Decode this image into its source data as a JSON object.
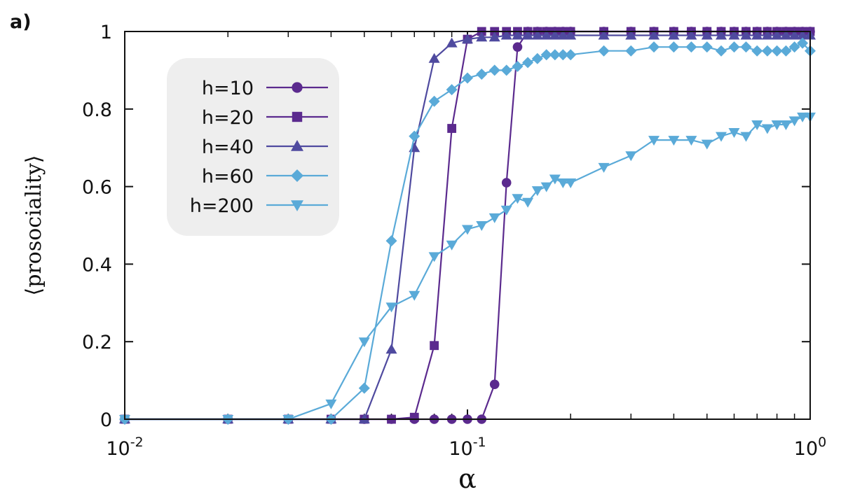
{
  "chart_data": {
    "type": "line",
    "panel_label": "a)",
    "xlabel": "α",
    "ylabel": "⟨prosociality⟩",
    "xscale": "log",
    "xlim": [
      0.01,
      1
    ],
    "ylim": [
      0,
      1
    ],
    "x_ticks": [
      {
        "value": 0.01,
        "base": "10",
        "exp": "-2"
      },
      {
        "value": 0.1,
        "base": "10",
        "exp": "-1"
      },
      {
        "value": 1,
        "base": "10",
        "exp": "0"
      }
    ],
    "y_ticks": [
      {
        "value": 0,
        "label": "0"
      },
      {
        "value": 0.2,
        "label": "0.2"
      },
      {
        "value": 0.4,
        "label": "0.4"
      },
      {
        "value": 0.6,
        "label": "0.6"
      },
      {
        "value": 0.8,
        "label": "0.8"
      },
      {
        "value": 1,
        "label": "1"
      }
    ],
    "legend_position": "top-left",
    "series": [
      {
        "name": "h=10",
        "color": "#5b2a8e",
        "marker": "circle",
        "x": [
          0.01,
          0.02,
          0.03,
          0.04,
          0.05,
          0.06,
          0.07,
          0.08,
          0.09,
          0.1,
          0.11,
          0.12,
          0.13,
          0.14,
          0.15,
          0.16,
          0.17,
          0.18,
          0.19,
          0.2,
          0.25,
          0.3,
          0.35,
          0.4,
          0.45,
          0.5,
          0.55,
          0.6,
          0.65,
          0.7,
          0.75,
          0.8,
          0.85,
          0.9,
          0.95,
          1.0
        ],
        "y": [
          0,
          0,
          0,
          0,
          0,
          0,
          0,
          0,
          0,
          0,
          0,
          0.09,
          0.61,
          0.96,
          1,
          1,
          1,
          1,
          1,
          1,
          1,
          1,
          1,
          1,
          1,
          1,
          1,
          1,
          1,
          1,
          1,
          1,
          1,
          1,
          1,
          1
        ]
      },
      {
        "name": "h=20",
        "color": "#5b2a8e",
        "marker": "square",
        "x": [
          0.01,
          0.02,
          0.03,
          0.04,
          0.05,
          0.06,
          0.07,
          0.08,
          0.09,
          0.1,
          0.11,
          0.12,
          0.13,
          0.14,
          0.15,
          0.16,
          0.17,
          0.18,
          0.19,
          0.2,
          0.25,
          0.3,
          0.35,
          0.4,
          0.45,
          0.5,
          0.55,
          0.6,
          0.65,
          0.7,
          0.75,
          0.8,
          0.85,
          0.9,
          0.95,
          1.0
        ],
        "y": [
          0,
          0,
          0,
          0,
          0,
          0,
          0.005,
          0.19,
          0.75,
          0.98,
          1,
          1,
          1,
          1,
          1,
          1,
          1,
          1,
          1,
          1,
          1,
          1,
          1,
          1,
          1,
          1,
          1,
          1,
          1,
          1,
          1,
          1,
          1,
          1,
          1,
          1
        ]
      },
      {
        "name": "h=40",
        "color": "#4f4a9f",
        "marker": "triangle-up",
        "x": [
          0.01,
          0.02,
          0.03,
          0.04,
          0.05,
          0.06,
          0.07,
          0.08,
          0.09,
          0.1,
          0.11,
          0.12,
          0.13,
          0.14,
          0.15,
          0.16,
          0.17,
          0.18,
          0.19,
          0.2,
          0.25,
          0.3,
          0.35,
          0.4,
          0.45,
          0.5,
          0.55,
          0.6,
          0.65,
          0.7,
          0.75,
          0.8,
          0.85,
          0.9,
          0.95,
          1.0
        ],
        "y": [
          0,
          0,
          0,
          0,
          0,
          0.18,
          0.7,
          0.93,
          0.97,
          0.98,
          0.985,
          0.985,
          0.99,
          0.99,
          0.99,
          0.99,
          0.99,
          0.99,
          0.99,
          0.99,
          0.99,
          0.99,
          0.99,
          0.99,
          0.99,
          0.99,
          0.99,
          0.99,
          0.99,
          0.99,
          0.99,
          0.99,
          0.99,
          0.99,
          0.99,
          0.99
        ]
      },
      {
        "name": "h=60",
        "color": "#5aaad8",
        "marker": "diamond",
        "x": [
          0.01,
          0.02,
          0.03,
          0.04,
          0.05,
          0.06,
          0.07,
          0.08,
          0.09,
          0.1,
          0.11,
          0.12,
          0.13,
          0.14,
          0.15,
          0.16,
          0.17,
          0.18,
          0.19,
          0.2,
          0.25,
          0.3,
          0.35,
          0.4,
          0.45,
          0.5,
          0.55,
          0.6,
          0.65,
          0.7,
          0.75,
          0.8,
          0.85,
          0.9,
          0.95,
          1.0
        ],
        "y": [
          0,
          0,
          0,
          0,
          0.08,
          0.46,
          0.73,
          0.82,
          0.85,
          0.88,
          0.89,
          0.9,
          0.9,
          0.91,
          0.92,
          0.93,
          0.94,
          0.94,
          0.94,
          0.94,
          0.95,
          0.95,
          0.96,
          0.96,
          0.96,
          0.96,
          0.95,
          0.96,
          0.96,
          0.95,
          0.95,
          0.95,
          0.95,
          0.96,
          0.97,
          0.95
        ]
      },
      {
        "name": "h=200",
        "color": "#5aaad8",
        "marker": "triangle-down",
        "x": [
          0.01,
          0.02,
          0.03,
          0.04,
          0.05,
          0.06,
          0.07,
          0.08,
          0.09,
          0.1,
          0.11,
          0.12,
          0.13,
          0.14,
          0.15,
          0.16,
          0.17,
          0.18,
          0.19,
          0.2,
          0.25,
          0.3,
          0.35,
          0.4,
          0.45,
          0.5,
          0.55,
          0.6,
          0.65,
          0.7,
          0.75,
          0.8,
          0.85,
          0.9,
          0.95,
          1.0
        ],
        "y": [
          0,
          0,
          0,
          0.04,
          0.2,
          0.29,
          0.32,
          0.42,
          0.45,
          0.49,
          0.5,
          0.52,
          0.54,
          0.57,
          0.56,
          0.59,
          0.6,
          0.62,
          0.61,
          0.61,
          0.65,
          0.68,
          0.72,
          0.72,
          0.72,
          0.71,
          0.73,
          0.74,
          0.73,
          0.76,
          0.75,
          0.76,
          0.76,
          0.77,
          0.78,
          0.78
        ]
      }
    ]
  }
}
